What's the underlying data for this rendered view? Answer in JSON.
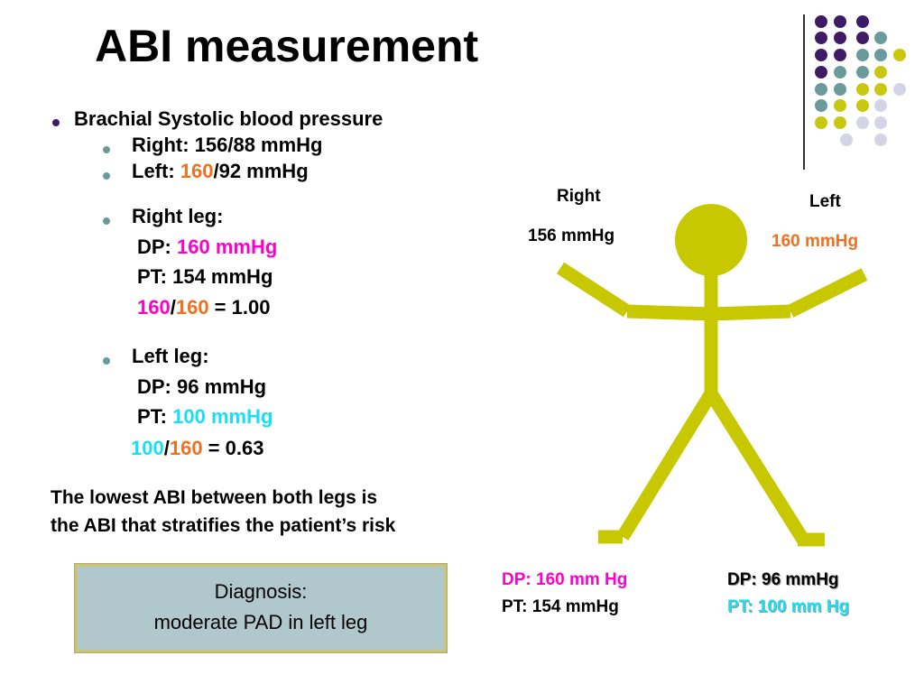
{
  "title": "ABI measurement",
  "brachial": {
    "heading": "Brachial Systolic blood pressure",
    "right_prefix": "Right: 156/88 mmHg",
    "left_prefix": "Left: ",
    "left_systolic": "160",
    "left_suffix": "/92 mmHg"
  },
  "right_leg": {
    "heading": "Right leg:",
    "dp_prefix": "DP: ",
    "dp_value": "160 mmHg",
    "pt": "PT: 154 mmHg",
    "ratio_num": "160",
    "ratio_slash": "/",
    "ratio_den": "160",
    "ratio_result": " = 1.00"
  },
  "left_leg": {
    "heading": "Left leg:",
    "dp": "DP: 96 mmHg",
    "pt_prefix": "PT: ",
    "pt_value": "100 mmHg",
    "ratio_num": "100",
    "ratio_slash": "/",
    "ratio_den": "160",
    "ratio_result": " = 0.63"
  },
  "note": {
    "line1": "The lowest ABI between both legs is",
    "line2": "the ABI that stratifies the patient’s risk"
  },
  "diagnosis": {
    "line1": "Diagnosis:",
    "line2": "moderate PAD in left leg"
  },
  "figure": {
    "right_arm_label": "Right",
    "right_arm_value": "156 mmHg",
    "left_arm_label": "Left",
    "left_arm_value": "160 mmHg",
    "right_leg_dp": "DP: 160 mm Hg",
    "right_leg_pt": "PT: 154 mmHg",
    "left_leg_dp": "DP: 96 mmHg",
    "left_leg_pt": "PT: 100 mm Hg"
  },
  "colors": {
    "figure": "#c8c800",
    "orange": "#f07020",
    "magenta": "#ff00cc",
    "cyan": "#19e0f0",
    "diagnosis_bg": "#b0c8cb",
    "purple": "#3f1b65",
    "teal": "#6b9a9a",
    "yellow": "#c8c810",
    "lavender": "#d4d4e6"
  }
}
